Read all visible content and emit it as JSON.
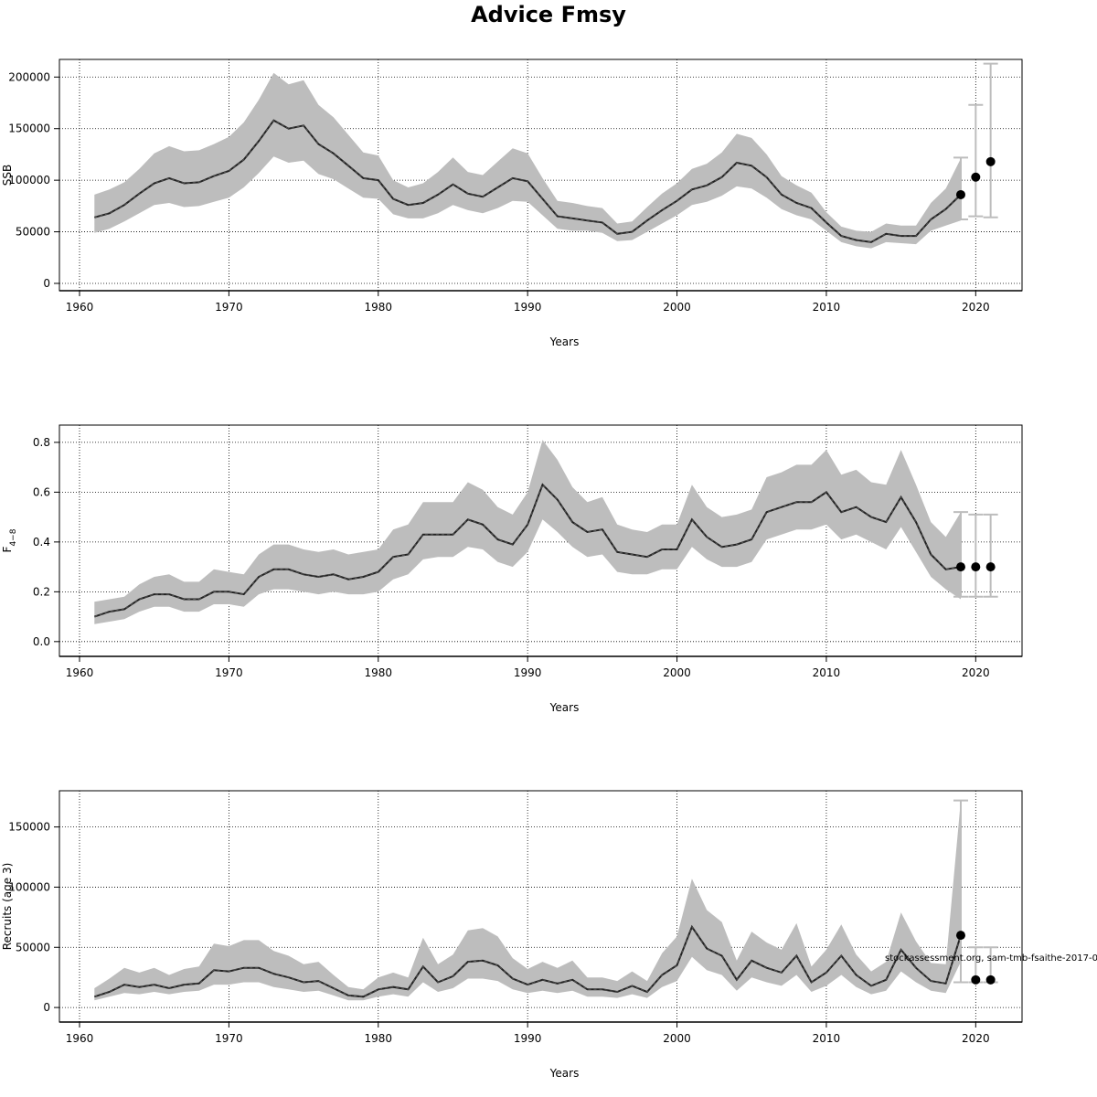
{
  "title": "Advice Fmsy",
  "footnote": "stockassessment.org, sam-tmb-fsaithe-2017-0",
  "colors": {
    "band": "#bdbdbd",
    "line": "#222222",
    "point": "#000000",
    "errorbar": "#bdbdbd",
    "grid": "#000000"
  },
  "chart_data": [
    {
      "type": "line",
      "id": "ssb",
      "ylabel": "SSB",
      "xlabel": "Years",
      "xlim": [
        1961,
        2021
      ],
      "ylim": [
        0,
        210000
      ],
      "xticks": [
        1960,
        1970,
        1980,
        1990,
        2000,
        2010,
        2020
      ],
      "yticks": [
        0,
        50000,
        100000,
        150000,
        200000
      ],
      "xtick_labels": [
        "1960",
        "1970",
        "1980",
        "1990",
        "2000",
        "2010",
        "2020"
      ],
      "ytick_labels": [
        "0",
        "50000",
        "100000",
        "150000",
        "200000"
      ],
      "x": [
        1961,
        1962,
        1963,
        1964,
        1965,
        1966,
        1967,
        1968,
        1969,
        1970,
        1971,
        1972,
        1973,
        1974,
        1975,
        1976,
        1977,
        1978,
        1979,
        1980,
        1981,
        1982,
        1983,
        1984,
        1985,
        1986,
        1987,
        1988,
        1989,
        1990,
        1991,
        1992,
        1993,
        1994,
        1995,
        1996,
        1997,
        1998,
        1999,
        2000,
        2001,
        2002,
        2003,
        2004,
        2005,
        2006,
        2007,
        2008,
        2009,
        2010,
        2011,
        2012,
        2013,
        2014,
        2015,
        2016,
        2017,
        2018,
        2019
      ],
      "estimate": [
        64000,
        68000,
        76000,
        87000,
        97000,
        102000,
        97000,
        98000,
        104000,
        109000,
        120000,
        138000,
        158000,
        150000,
        153000,
        135000,
        126000,
        114000,
        102000,
        100000,
        82000,
        76000,
        78000,
        86000,
        96000,
        87000,
        84000,
        93000,
        102000,
        99000,
        82000,
        65000,
        63000,
        61000,
        59000,
        48000,
        50000,
        61000,
        71000,
        80000,
        91000,
        95000,
        103000,
        117000,
        114000,
        103000,
        86000,
        78000,
        73000,
        59000,
        46000,
        42000,
        40000,
        48000,
        46000,
        46000,
        62000,
        72000,
        86000
      ],
      "lower": [
        49000,
        53000,
        60000,
        68000,
        76000,
        78000,
        74000,
        75000,
        79000,
        83000,
        93000,
        107000,
        123000,
        117000,
        119000,
        106000,
        101000,
        92000,
        83000,
        82000,
        67000,
        63000,
        63000,
        68000,
        76000,
        71000,
        68000,
        73000,
        80000,
        79000,
        66000,
        53000,
        51000,
        51000,
        49000,
        41000,
        42000,
        50000,
        58000,
        66000,
        76000,
        79000,
        85000,
        94000,
        92000,
        83000,
        72000,
        66000,
        62000,
        51000,
        40000,
        36000,
        34000,
        40000,
        39000,
        38000,
        51000,
        56000,
        61000
      ],
      "upper": [
        86000,
        91000,
        98000,
        111000,
        126000,
        133000,
        128000,
        129000,
        135000,
        142000,
        156000,
        178000,
        204000,
        193000,
        197000,
        173000,
        161000,
        144000,
        127000,
        124000,
        100000,
        93000,
        97000,
        108000,
        122000,
        108000,
        105000,
        118000,
        131000,
        126000,
        102000,
        80000,
        78000,
        75000,
        73000,
        58000,
        60000,
        74000,
        87000,
        97000,
        111000,
        116000,
        127000,
        145000,
        141000,
        125000,
        104000,
        95000,
        88000,
        69000,
        55000,
        51000,
        50000,
        58000,
        56000,
        56000,
        78000,
        92000,
        121000
      ],
      "forecast": [
        {
          "year": 2019,
          "value": 86000,
          "low": 62000,
          "high": 122000
        },
        {
          "year": 2020,
          "value": 103000,
          "low": 65000,
          "high": 173000
        },
        {
          "year": 2021,
          "value": 118000,
          "low": 64000,
          "high": 213000
        }
      ]
    },
    {
      "type": "line",
      "id": "f48",
      "ylabel": "F",
      "ylabel_sub": "4−8",
      "xlabel": "Years",
      "xlim": [
        1961,
        2021
      ],
      "ylim": [
        -0.03,
        0.84
      ],
      "xticks": [
        1960,
        1970,
        1980,
        1990,
        2000,
        2010,
        2020
      ],
      "yticks": [
        0.0,
        0.2,
        0.4,
        0.6,
        0.8
      ],
      "xtick_labels": [
        "1960",
        "1970",
        "1980",
        "1990",
        "2000",
        "2010",
        "2020"
      ],
      "ytick_labels": [
        "0.0",
        "0.2",
        "0.4",
        "0.6",
        "0.8"
      ],
      "x": [
        1961,
        1962,
        1963,
        1964,
        1965,
        1966,
        1967,
        1968,
        1969,
        1970,
        1971,
        1972,
        1973,
        1974,
        1975,
        1976,
        1977,
        1978,
        1979,
        1980,
        1981,
        1982,
        1983,
        1984,
        1985,
        1986,
        1987,
        1988,
        1989,
        1990,
        1991,
        1992,
        1993,
        1994,
        1995,
        1996,
        1997,
        1998,
        1999,
        2000,
        2001,
        2002,
        2003,
        2004,
        2005,
        2006,
        2007,
        2008,
        2009,
        2010,
        2011,
        2012,
        2013,
        2014,
        2015,
        2016,
        2017,
        2018,
        2019
      ],
      "estimate": [
        0.1,
        0.12,
        0.13,
        0.17,
        0.19,
        0.19,
        0.17,
        0.17,
        0.2,
        0.2,
        0.19,
        0.26,
        0.29,
        0.29,
        0.27,
        0.26,
        0.27,
        0.25,
        0.26,
        0.28,
        0.34,
        0.35,
        0.43,
        0.43,
        0.43,
        0.49,
        0.47,
        0.41,
        0.39,
        0.47,
        0.63,
        0.57,
        0.48,
        0.44,
        0.45,
        0.36,
        0.35,
        0.34,
        0.37,
        0.37,
        0.49,
        0.42,
        0.38,
        0.39,
        0.41,
        0.52,
        0.54,
        0.56,
        0.56,
        0.6,
        0.52,
        0.54,
        0.5,
        0.48,
        0.58,
        0.48,
        0.35,
        0.29,
        0.3
      ],
      "lower": [
        0.07,
        0.08,
        0.09,
        0.12,
        0.14,
        0.14,
        0.12,
        0.12,
        0.15,
        0.15,
        0.14,
        0.19,
        0.21,
        0.21,
        0.2,
        0.19,
        0.2,
        0.19,
        0.19,
        0.2,
        0.25,
        0.27,
        0.33,
        0.34,
        0.34,
        0.38,
        0.37,
        0.32,
        0.3,
        0.36,
        0.49,
        0.44,
        0.38,
        0.34,
        0.35,
        0.28,
        0.27,
        0.27,
        0.29,
        0.29,
        0.38,
        0.33,
        0.3,
        0.3,
        0.32,
        0.41,
        0.43,
        0.45,
        0.45,
        0.47,
        0.41,
        0.43,
        0.4,
        0.37,
        0.46,
        0.36,
        0.26,
        0.21,
        0.17
      ],
      "upper": [
        0.16,
        0.17,
        0.18,
        0.23,
        0.26,
        0.27,
        0.24,
        0.24,
        0.29,
        0.28,
        0.27,
        0.35,
        0.39,
        0.39,
        0.37,
        0.36,
        0.37,
        0.35,
        0.36,
        0.37,
        0.45,
        0.47,
        0.56,
        0.56,
        0.56,
        0.64,
        0.61,
        0.54,
        0.51,
        0.6,
        0.81,
        0.73,
        0.62,
        0.56,
        0.58,
        0.47,
        0.45,
        0.44,
        0.47,
        0.47,
        0.63,
        0.54,
        0.5,
        0.51,
        0.53,
        0.66,
        0.68,
        0.71,
        0.71,
        0.77,
        0.67,
        0.69,
        0.64,
        0.63,
        0.77,
        0.63,
        0.48,
        0.42,
        0.52
      ],
      "forecast": [
        {
          "year": 2019,
          "value": 0.3,
          "low": 0.18,
          "high": 0.52
        },
        {
          "year": 2020,
          "value": 0.3,
          "low": 0.18,
          "high": 0.51
        },
        {
          "year": 2021,
          "value": 0.3,
          "low": 0.18,
          "high": 0.51
        }
      ]
    },
    {
      "type": "line",
      "id": "recruits",
      "ylabel": "Recruits (age 3)",
      "xlabel": "Years",
      "xlim": [
        1961,
        2021
      ],
      "ylim": [
        -6000,
        174000
      ],
      "xticks": [
        1960,
        1970,
        1980,
        1990,
        2000,
        2010,
        2020
      ],
      "yticks": [
        0,
        50000,
        100000,
        150000
      ],
      "xtick_labels": [
        "1960",
        "1970",
        "1980",
        "1990",
        "2000",
        "2010",
        "2020"
      ],
      "ytick_labels": [
        "0",
        "50000",
        "100000",
        "150000"
      ],
      "x": [
        1961,
        1962,
        1963,
        1964,
        1965,
        1966,
        1967,
        1968,
        1969,
        1970,
        1971,
        1972,
        1973,
        1974,
        1975,
        1976,
        1977,
        1978,
        1979,
        1980,
        1981,
        1982,
        1983,
        1984,
        1985,
        1986,
        1987,
        1988,
        1989,
        1990,
        1991,
        1992,
        1993,
        1994,
        1995,
        1996,
        1997,
        1998,
        1999,
        2000,
        2001,
        2002,
        2003,
        2004,
        2005,
        2006,
        2007,
        2008,
        2009,
        2010,
        2011,
        2012,
        2013,
        2014,
        2015,
        2016,
        2017,
        2018,
        2019
      ],
      "estimate": [
        9000,
        13000,
        19000,
        17000,
        19000,
        16000,
        19000,
        20000,
        31000,
        30000,
        33000,
        33000,
        28000,
        25000,
        21000,
        22000,
        16000,
        10000,
        9000,
        15000,
        17000,
        15000,
        34000,
        21000,
        26000,
        38000,
        39000,
        35000,
        24000,
        19000,
        23000,
        20000,
        23000,
        15000,
        15000,
        13000,
        18000,
        13000,
        27000,
        35000,
        67000,
        49000,
        43000,
        23000,
        39000,
        33000,
        29000,
        43000,
        21000,
        29000,
        43000,
        27000,
        18000,
        23000,
        48000,
        33000,
        22000,
        20000,
        60000
      ],
      "lower": [
        6000,
        9000,
        12000,
        11000,
        13000,
        11000,
        13000,
        14000,
        19000,
        19000,
        21000,
        21000,
        17000,
        15000,
        13000,
        14000,
        10000,
        6000,
        6000,
        9000,
        11000,
        9000,
        21000,
        13000,
        16000,
        24000,
        24000,
        22000,
        15000,
        12000,
        14000,
        12000,
        14000,
        9000,
        9000,
        8000,
        11000,
        8000,
        17000,
        22000,
        42000,
        31000,
        27000,
        14000,
        25000,
        21000,
        18000,
        27000,
        13000,
        18000,
        27000,
        17000,
        11000,
        14000,
        30000,
        21000,
        14000,
        12000,
        38000
      ],
      "upper": [
        16000,
        24000,
        33000,
        29000,
        33000,
        27000,
        32000,
        34000,
        53000,
        51000,
        56000,
        56000,
        47000,
        43000,
        36000,
        38000,
        27000,
        17000,
        15000,
        25000,
        29000,
        25000,
        58000,
        36000,
        44000,
        64000,
        66000,
        59000,
        41000,
        32000,
        38000,
        33000,
        39000,
        25000,
        25000,
        22000,
        30000,
        22000,
        45000,
        59000,
        107000,
        81000,
        71000,
        39000,
        63000,
        54000,
        48000,
        70000,
        34000,
        48000,
        69000,
        44000,
        30000,
        38000,
        79000,
        55000,
        37000,
        36000,
        172000
      ],
      "forecast": [
        {
          "year": 2019,
          "value": 60000,
          "low": 21000,
          "high": 172000
        },
        {
          "year": 2020,
          "value": 23000,
          "low": 21000,
          "high": 50000
        },
        {
          "year": 2021,
          "value": 23000,
          "low": 21000,
          "high": 50000
        }
      ]
    }
  ]
}
